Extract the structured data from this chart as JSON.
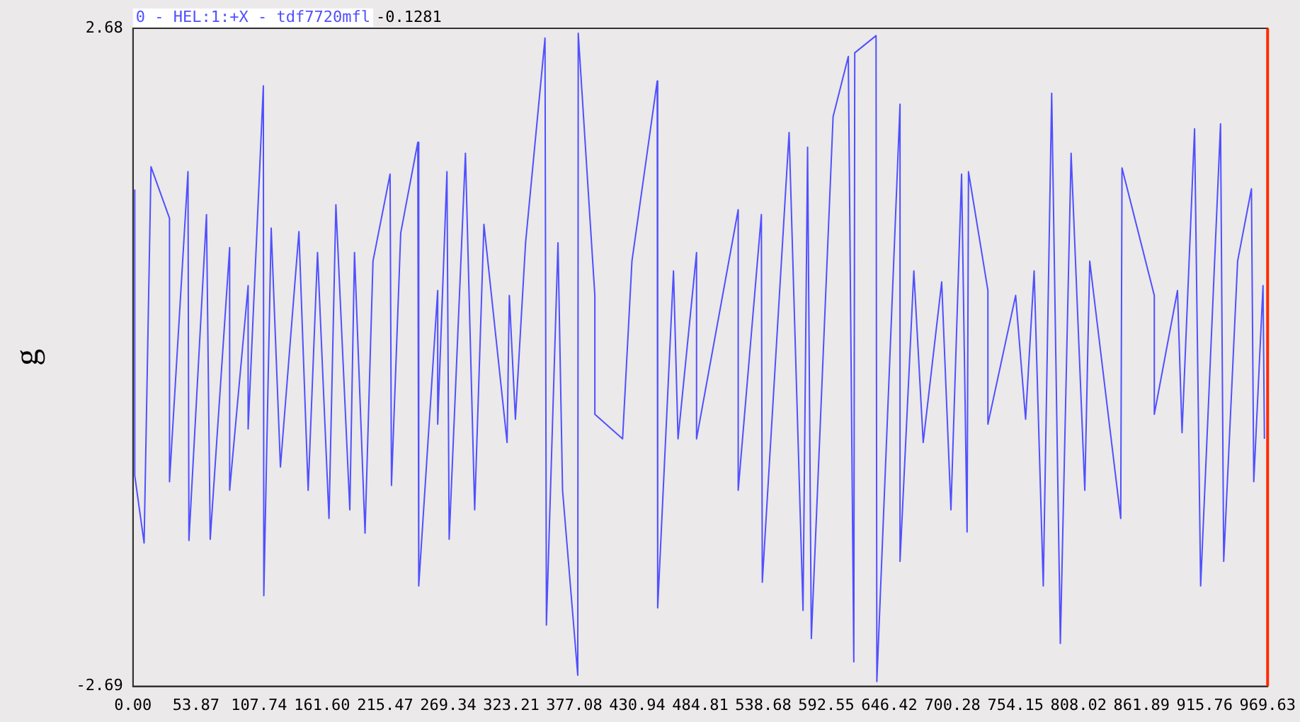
{
  "chart_data": {
    "type": "line",
    "title": "0 - HEL:1:+X - tdf7720mfl",
    "annotations": [
      "-0.1281"
    ],
    "ylabel": "g",
    "xlim": [
      0,
      969.63
    ],
    "ylim": [
      -2.69,
      2.68
    ],
    "xticks": [
      {
        "value": 0,
        "label": "0.00"
      },
      53.87,
      107.74,
      {
        "value": 161.6,
        "label": "161.60"
      },
      215.47,
      269.34,
      323.21,
      377.08,
      430.94,
      484.81,
      538.68,
      592.55,
      646.42,
      700.28,
      754.15,
      808.02,
      861.89,
      915.76,
      969.63
    ],
    "yticks": [
      -2.69,
      2.68
    ],
    "grid": false,
    "legend": false,
    "marker": "none",
    "line_style": "solid",
    "ref_lines": [
      {
        "axis": "x",
        "value": 969.63,
        "color": "#ff2a00"
      }
    ],
    "series": [
      {
        "color": "#5050ff",
        "x": [
          1.5,
          1.5,
          9.5,
          15.4,
          31.2,
          31.2,
          47.0,
          47.8,
          62.8,
          66.0,
          82.6,
          82.6,
          98.4,
          98.4,
          111.4,
          111.8,
          118.1,
          126.0,
          141.8,
          149.7,
          157.7,
          167.5,
          173.4,
          185.3,
          189.3,
          198.3,
          205.1,
          219.7,
          220.9,
          228.8,
          243.4,
          244.2,
          260.4,
          260.4,
          268.3,
          270.2,
          284.1,
          292.0,
          299.9,
          319.7,
          321.6,
          326.8,
          335.5,
          352.1,
          353.3,
          363.2,
          367.1,
          380.1,
          380.5,
          394.7,
          394.7,
          418.4,
          426.4,
          448.0,
          448.4,
          461.9,
          465.8,
          481.6,
          481.6,
          517.2,
          517.2,
          537.0,
          537.8,
          560.7,
          572.6,
          576.5,
          579.7,
          598.3,
          611.3,
          616.0,
          616.8,
          635.0,
          635.7,
          655.5,
          655.5,
          667.3,
          675.3,
          691.1,
          699.0,
          708.1,
          712.8,
          714.0,
          730.6,
          730.6,
          754.3,
          762.8,
          770.1,
          777.9,
          785.1,
          792.5,
          801.7,
          813.4,
          817.6,
          844.1,
          845.2,
          872.8,
          872.8,
          892.6,
          896.5,
          907.2,
          912.4,
          929.4,
          932.1,
          944.0,
          955.8,
          957.8,
          965.7,
          966.9
        ],
        "values": [
          1.36,
          -0.97,
          -1.52,
          1.55,
          1.13,
          -1.02,
          1.51,
          -1.5,
          1.16,
          -1.49,
          0.89,
          -1.09,
          0.58,
          -0.59,
          2.21,
          -1.95,
          1.05,
          -0.9,
          1.02,
          -1.09,
          0.85,
          -1.32,
          1.24,
          -1.25,
          0.85,
          -1.44,
          0.78,
          1.49,
          -1.05,
          1.01,
          1.75,
          -1.87,
          0.54,
          -0.55,
          1.51,
          -1.49,
          1.66,
          -1.25,
          1.08,
          -0.7,
          0.5,
          -0.51,
          0.93,
          2.6,
          -2.19,
          0.93,
          -1.09,
          -2.6,
          2.64,
          0.5,
          -0.47,
          -0.67,
          0.78,
          2.25,
          -2.05,
          0.7,
          -0.67,
          0.85,
          -0.67,
          1.2,
          -1.09,
          1.16,
          -1.84,
          1.83,
          -2.07,
          1.71,
          -2.3,
          1.96,
          2.45,
          -2.49,
          2.48,
          2.62,
          -2.65,
          2.06,
          -1.67,
          0.7,
          -0.7,
          0.61,
          -1.25,
          1.49,
          -1.43,
          1.51,
          0.54,
          -0.55,
          0.5,
          -0.51,
          0.7,
          -1.87,
          2.15,
          -2.34,
          1.66,
          -1.09,
          0.78,
          -1.32,
          1.54,
          0.5,
          -0.47,
          0.54,
          -0.62,
          1.86,
          -1.87,
          1.9,
          -1.67,
          0.78,
          1.37,
          -1.02,
          0.58,
          -0.67
        ]
      }
    ]
  }
}
